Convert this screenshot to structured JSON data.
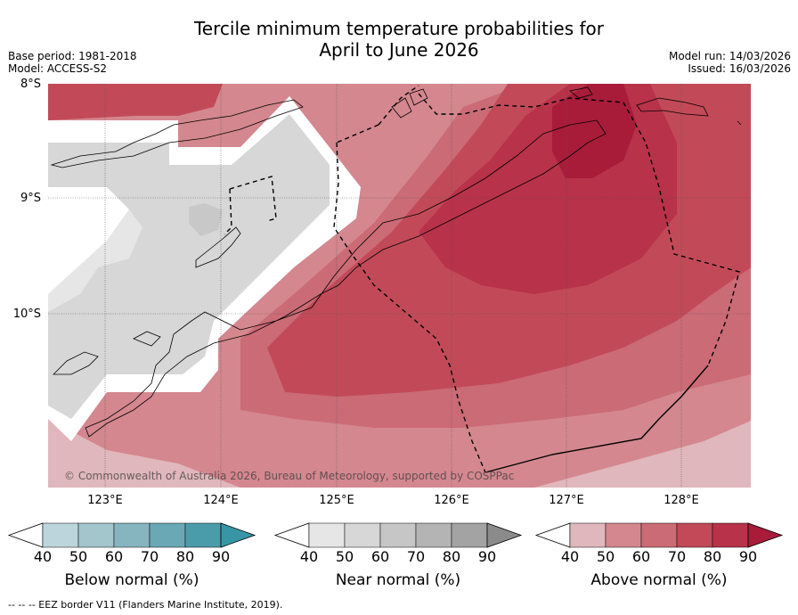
{
  "title": {
    "line1": "Tercile minimum temperature probabilities for",
    "line2": "April to June 2026"
  },
  "meta_left": {
    "base_period": "Base period: 1981-2018",
    "model": "Model: ACCESS-S2"
  },
  "meta_right": {
    "model_run": "Model run: 14/03/2026",
    "issued": "Issued: 16/03/2026"
  },
  "map": {
    "lat_labels": [
      "8°S",
      "9°S",
      "10°S"
    ],
    "lon_labels": [
      "123°E",
      "124°E",
      "125°E",
      "126°E",
      "127°E",
      "128°E"
    ],
    "copyright": "© Commonwealth of Australia 2026, Bureau of Meteorology, supported by COSPPac",
    "colors": {
      "above_40": "#e0b7bc",
      "above_50": "#d4878f",
      "above_60": "#cb6b76",
      "above_70": "#c24a58",
      "above_80": "#b83249",
      "above_90": "#a81c3a",
      "near_50": "#d7d7d7",
      "near_60": "#c8c8c8",
      "near_40": "#e6e6e6"
    }
  },
  "colorbars": [
    {
      "label": "Below normal (%)",
      "ticks": [
        "40",
        "50",
        "60",
        "70",
        "80",
        "90"
      ],
      "colors": [
        "#ffffff",
        "#bcd5dc",
        "#a3c5cc",
        "#86b5c0",
        "#6aa8b5",
        "#4b9cab",
        "#3795a6"
      ]
    },
    {
      "label": "Near normal (%)",
      "ticks": [
        "40",
        "50",
        "60",
        "70",
        "80",
        "90"
      ],
      "colors": [
        "#ffffff",
        "#e6e6e6",
        "#d7d7d7",
        "#c6c6c6",
        "#b4b4b4",
        "#a3a3a3",
        "#8b8b8b"
      ]
    },
    {
      "label": "Above normal (%)",
      "ticks": [
        "40",
        "50",
        "60",
        "70",
        "80",
        "90"
      ],
      "colors": [
        "#ffffff",
        "#e0b7bc",
        "#d4878f",
        "#cb6b76",
        "#c24a58",
        "#b83249",
        "#a81c3a"
      ]
    }
  ],
  "eez_note": "--  --  -- EEZ border V11 (Flanders Marine Institute, 2019)."
}
